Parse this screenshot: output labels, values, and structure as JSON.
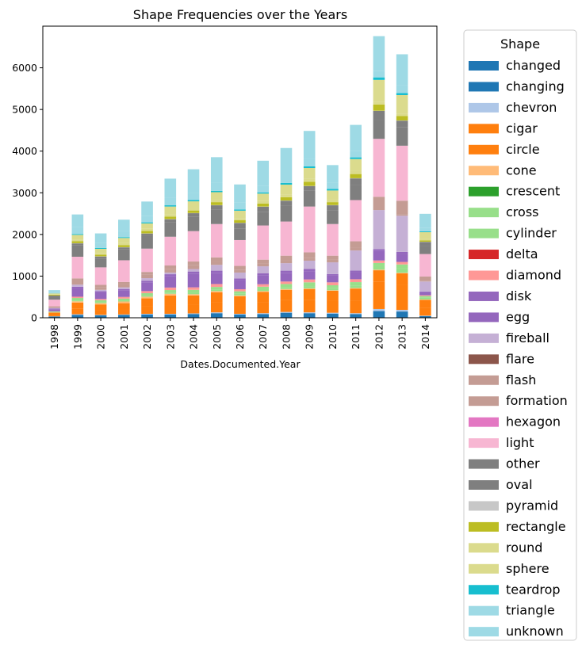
{
  "chart_data": {
    "type": "bar",
    "stacked": true,
    "title": "Shape Frequencies over the Years",
    "xlabel": "Dates.Documented.Year",
    "ylabel": "",
    "ylim": [
      0,
      7000
    ],
    "yticks": [
      0,
      1000,
      2000,
      3000,
      4000,
      5000,
      6000
    ],
    "grid": false,
    "legend": {
      "title": "Shape",
      "placement": "outside-right"
    },
    "categories": [
      "1998",
      "1999",
      "2000",
      "2001",
      "2002",
      "2003",
      "2004",
      "2005",
      "2006",
      "2007",
      "2008",
      "2009",
      "2010",
      "2011",
      "2012",
      "2013",
      "2014"
    ],
    "series": [
      {
        "name": "changed",
        "color": "#1f77b4",
        "values": [
          0,
          0,
          0,
          0,
          0,
          0,
          0,
          0,
          0,
          0,
          0,
          0,
          0,
          0,
          0,
          0,
          0
        ]
      },
      {
        "name": "changing",
        "color": "#1f77b4",
        "values": [
          30,
          70,
          60,
          70,
          80,
          80,
          90,
          110,
          80,
          90,
          120,
          110,
          100,
          90,
          160,
          150,
          40
        ]
      },
      {
        "name": "chevron",
        "color": "#aec7e8",
        "values": [
          5,
          15,
          10,
          10,
          15,
          15,
          15,
          20,
          15,
          20,
          20,
          20,
          20,
          20,
          50,
          40,
          10
        ]
      },
      {
        "name": "cigar",
        "color": "#ff7f0e",
        "values": [
          20,
          130,
          110,
          120,
          180,
          200,
          200,
          240,
          200,
          260,
          280,
          300,
          280,
          300,
          650,
          600,
          180
        ]
      },
      {
        "name": "circle",
        "color": "#ff7f0e",
        "values": [
          70,
          150,
          140,
          150,
          190,
          240,
          230,
          240,
          220,
          250,
          250,
          260,
          250,
          290,
          280,
          280,
          200
        ]
      },
      {
        "name": "cone",
        "color": "#ffbb78",
        "values": [
          3,
          30,
          30,
          40,
          40,
          40,
          30,
          30,
          20,
          20,
          20,
          15,
          10,
          15,
          15,
          10,
          10
        ]
      },
      {
        "name": "crescent",
        "color": "#2ca02c",
        "values": [
          0,
          0,
          0,
          0,
          0,
          0,
          0,
          0,
          0,
          0,
          0,
          0,
          0,
          0,
          0,
          0,
          0
        ]
      },
      {
        "name": "cross",
        "color": "#98df8a",
        "values": [
          2,
          20,
          20,
          20,
          25,
          30,
          35,
          40,
          40,
          45,
          50,
          55,
          50,
          60,
          100,
          110,
          40
        ]
      },
      {
        "name": "cylinder",
        "color": "#98df8a",
        "values": [
          20,
          60,
          50,
          50,
          60,
          60,
          70,
          60,
          60,
          60,
          70,
          90,
          70,
          80,
          60,
          90,
          40
        ]
      },
      {
        "name": "delta",
        "color": "#d62728",
        "values": [
          0,
          0,
          0,
          0,
          0,
          0,
          0,
          0,
          0,
          0,
          0,
          0,
          0,
          0,
          0,
          0,
          0
        ]
      },
      {
        "name": "diamond",
        "color": "#ff9896",
        "values": [
          5,
          30,
          30,
          40,
          50,
          60,
          60,
          70,
          50,
          60,
          60,
          70,
          70,
          70,
          60,
          60,
          20
        ]
      },
      {
        "name": "disk",
        "color": "#9467bd",
        "values": [
          50,
          200,
          160,
          150,
          210,
          270,
          320,
          260,
          210,
          210,
          210,
          200,
          160,
          160,
          230,
          200,
          80
        ]
      },
      {
        "name": "egg",
        "color": "#9467bd",
        "values": [
          15,
          40,
          30,
          40,
          40,
          50,
          60,
          60,
          50,
          50,
          50,
          50,
          40,
          50,
          40,
          40,
          10
        ]
      },
      {
        "name": "fireball",
        "color": "#c5b0d5",
        "values": [
          15,
          50,
          30,
          40,
          60,
          40,
          60,
          140,
          140,
          170,
          180,
          200,
          280,
          480,
          940,
          870,
          240
        ]
      },
      {
        "name": "flare",
        "color": "#8c564b",
        "values": [
          0,
          0,
          0,
          0,
          0,
          0,
          0,
          0,
          0,
          0,
          0,
          0,
          0,
          0,
          0,
          0,
          0
        ]
      },
      {
        "name": "flash",
        "color": "#c49c94",
        "values": [
          20,
          80,
          60,
          70,
          80,
          80,
          90,
          80,
          70,
          60,
          60,
          70,
          60,
          60,
          40,
          40,
          20
        ]
      },
      {
        "name": "formation",
        "color": "#c49c94",
        "values": [
          20,
          70,
          60,
          60,
          70,
          90,
          90,
          100,
          90,
          100,
          120,
          130,
          100,
          160,
          280,
          320,
          100
        ]
      },
      {
        "name": "hexagon",
        "color": "#e377c2",
        "values": [
          0,
          0,
          0,
          0,
          0,
          0,
          0,
          0,
          0,
          0,
          0,
          0,
          0,
          0,
          0,
          0,
          0
        ]
      },
      {
        "name": "light",
        "color": "#f7b6d2",
        "values": [
          160,
          520,
          420,
          520,
          560,
          690,
          730,
          800,
          620,
          820,
          820,
          1100,
          760,
          990,
          1390,
          1320,
          540
        ]
      },
      {
        "name": "other",
        "color": "#7f7f7f",
        "values": [
          60,
          270,
          210,
          260,
          300,
          340,
          340,
          340,
          280,
          330,
          380,
          380,
          320,
          360,
          460,
          450,
          200
        ]
      },
      {
        "name": "oval",
        "color": "#7f7f7f",
        "values": [
          40,
          50,
          50,
          50,
          60,
          80,
          90,
          110,
          130,
          120,
          120,
          110,
          130,
          160,
          210,
          150,
          90
        ]
      },
      {
        "name": "pyramid",
        "color": "#c7c7c7",
        "values": [
          0,
          5,
          5,
          5,
          5,
          5,
          5,
          5,
          5,
          5,
          5,
          5,
          5,
          5,
          5,
          5,
          5
        ]
      },
      {
        "name": "rectangle",
        "color": "#bcbd22",
        "values": [
          20,
          50,
          40,
          50,
          60,
          60,
          60,
          70,
          60,
          70,
          80,
          100,
          70,
          100,
          150,
          110,
          30
        ]
      },
      {
        "name": "round",
        "color": "#dbdb8d",
        "values": [
          10,
          40,
          40,
          50,
          60,
          60,
          60,
          60,
          50,
          60,
          60,
          70,
          60,
          70,
          70,
          60,
          30
        ]
      },
      {
        "name": "sphere",
        "color": "#dbdb8d",
        "values": [
          20,
          110,
          100,
          120,
          120,
          180,
          160,
          180,
          180,
          180,
          240,
          260,
          220,
          290,
          520,
          440,
          170
        ]
      },
      {
        "name": "teardrop",
        "color": "#17becf",
        "values": [
          3,
          20,
          20,
          20,
          25,
          30,
          30,
          30,
          30,
          30,
          40,
          40,
          40,
          40,
          60,
          50,
          20
        ]
      },
      {
        "name": "triangle",
        "color": "#9edae5",
        "values": [
          25,
          170,
          130,
          150,
          150,
          180,
          170,
          190,
          160,
          160,
          170,
          180,
          150,
          160,
          160,
          180,
          80
        ]
      },
      {
        "name": "unknown",
        "color": "#9edae5",
        "values": [
          50,
          300,
          220,
          270,
          350,
          460,
          570,
          620,
          440,
          600,
          670,
          670,
          420,
          620,
          830,
          750,
          340
        ]
      }
    ]
  }
}
